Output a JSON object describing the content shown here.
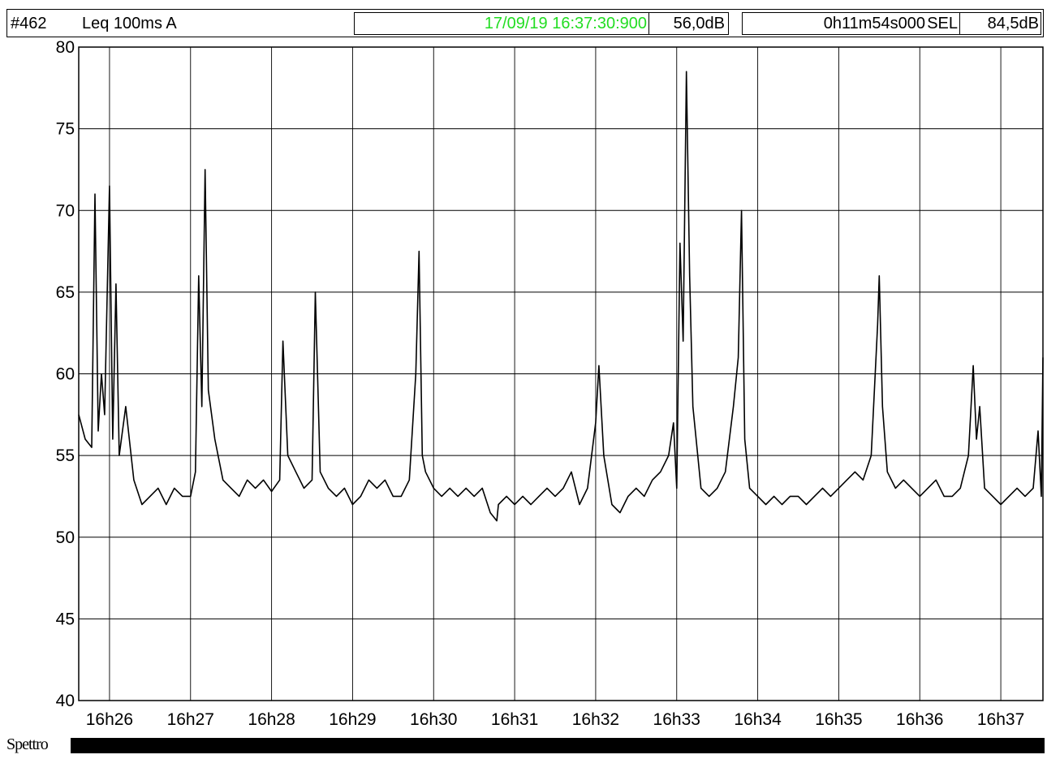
{
  "header": {
    "record_id": "#462",
    "measure": "Leq 100ms  A",
    "datetime": "17/09/19 16:37:30:900",
    "datetime_color": "#22dd22",
    "level": "56,0dB",
    "duration": "0h11m54s000",
    "sel_label": "SEL",
    "sel_value": "84,5dB"
  },
  "footer": {
    "spectrum_label": "Spettro"
  },
  "chart_data": {
    "type": "line",
    "title": "",
    "xlabel": "",
    "ylabel": "",
    "ylim": [
      40,
      80
    ],
    "y_ticks": [
      "40",
      "45",
      "50",
      "55",
      "60",
      "65",
      "70",
      "75",
      "80"
    ],
    "x_range_minutes": [
      25.62,
      37.52
    ],
    "x_tick_labels": [
      "16h26",
      "16h27",
      "16h28",
      "16h29",
      "16h30",
      "16h31",
      "16h32",
      "16h33",
      "16h34",
      "16h35",
      "16h36",
      "16h37"
    ],
    "x_tick_minutes": [
      26,
      27,
      28,
      29,
      30,
      31,
      32,
      33,
      34,
      35,
      36,
      37
    ],
    "grid": true,
    "line_color": "#000000",
    "series": [
      {
        "x_minutes": [
          25.62,
          25.7,
          25.78,
          25.82,
          25.86,
          25.9,
          25.94,
          26.0,
          26.04,
          26.08,
          26.12,
          26.2,
          26.3,
          26.4,
          26.5,
          26.6,
          26.7,
          26.8,
          26.9,
          27.0,
          27.06,
          27.1,
          27.14,
          27.18,
          27.22,
          27.3,
          27.4,
          27.5,
          27.6,
          27.7,
          27.8,
          27.9,
          28.0,
          28.1,
          28.14,
          28.2,
          28.3,
          28.4,
          28.5,
          28.54,
          28.6,
          28.7,
          28.8,
          28.9,
          29.0,
          29.1,
          29.2,
          29.3,
          29.4,
          29.5,
          29.6,
          29.7,
          29.78,
          29.82,
          29.86,
          29.9,
          30.0,
          30.1,
          30.2,
          30.3,
          30.4,
          30.5,
          30.6,
          30.7,
          30.78,
          30.8,
          30.9,
          31.0,
          31.1,
          31.2,
          31.3,
          31.4,
          31.5,
          31.6,
          31.7,
          31.8,
          31.9,
          32.0,
          32.04,
          32.1,
          32.2,
          32.3,
          32.4,
          32.5,
          32.6,
          32.7,
          32.8,
          32.9,
          32.96,
          33.0,
          33.04,
          33.08,
          33.12,
          33.16,
          33.2,
          33.3,
          33.4,
          33.5,
          33.6,
          33.7,
          33.76,
          33.8,
          33.84,
          33.9,
          34.0,
          34.1,
          34.2,
          34.3,
          34.4,
          34.5,
          34.6,
          34.7,
          34.8,
          34.9,
          35.0,
          35.1,
          35.2,
          35.3,
          35.4,
          35.48,
          35.5,
          35.54,
          35.6,
          35.7,
          35.8,
          35.9,
          36.0,
          36.1,
          36.2,
          36.3,
          36.4,
          36.5,
          36.6,
          36.66,
          36.7,
          36.74,
          36.8,
          36.9,
          37.0,
          37.1,
          37.2,
          37.3,
          37.4,
          37.46,
          37.5,
          37.52
        ],
        "y_db": [
          57.5,
          56.0,
          55.5,
          71.0,
          56.5,
          60.0,
          57.5,
          71.5,
          56.0,
          65.5,
          55.0,
          58.0,
          53.5,
          52.0,
          52.5,
          53.0,
          52.0,
          53.0,
          52.5,
          52.5,
          54.0,
          66.0,
          58.0,
          72.5,
          59.0,
          56.0,
          53.5,
          53.0,
          52.5,
          53.5,
          53.0,
          53.5,
          52.8,
          53.5,
          62.0,
          55.0,
          54.0,
          53.0,
          53.5,
          65.0,
          54.0,
          53.0,
          52.5,
          53.0,
          52.0,
          52.5,
          53.5,
          53.0,
          53.5,
          52.5,
          52.5,
          53.5,
          60.0,
          67.5,
          55.0,
          54.0,
          53.0,
          52.5,
          53.0,
          52.5,
          53.0,
          52.5,
          53.0,
          51.5,
          51.0,
          52.0,
          52.5,
          52.0,
          52.5,
          52.0,
          52.5,
          53.0,
          52.5,
          53.0,
          54.0,
          52.0,
          53.0,
          57.0,
          60.5,
          55.0,
          52.0,
          51.5,
          52.5,
          53.0,
          52.5,
          53.5,
          54.0,
          55.0,
          57.0,
          53.0,
          68.0,
          62.0,
          78.5,
          66.0,
          58.0,
          53.0,
          52.5,
          53.0,
          54.0,
          58.0,
          61.0,
          70.0,
          56.0,
          53.0,
          52.5,
          52.0,
          52.5,
          52.0,
          52.5,
          52.5,
          52.0,
          52.5,
          53.0,
          52.5,
          53.0,
          53.5,
          54.0,
          53.5,
          55.0,
          63.0,
          66.0,
          58.0,
          54.0,
          53.0,
          53.5,
          53.0,
          52.5,
          53.0,
          53.5,
          52.5,
          52.5,
          53.0,
          55.0,
          60.5,
          56.0,
          58.0,
          53.0,
          52.5,
          52.0,
          52.5,
          53.0,
          52.5,
          53.0,
          56.5,
          52.5,
          61.0
        ]
      }
    ]
  }
}
